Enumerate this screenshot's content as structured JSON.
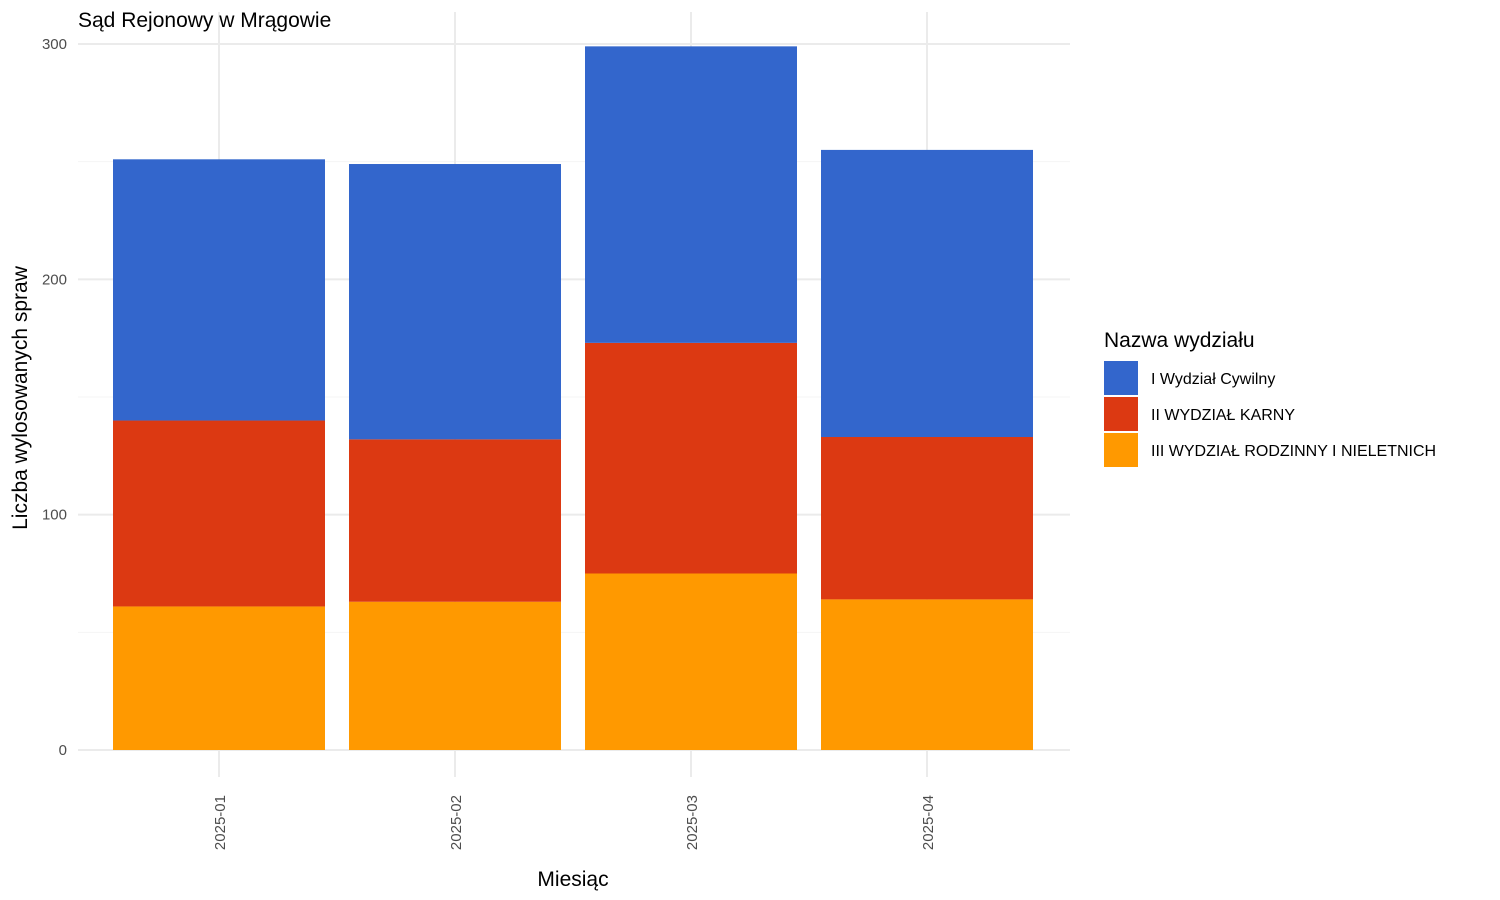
{
  "chart_data": {
    "type": "bar",
    "stacked": true,
    "title": "Sąd Rejonowy w Mrągowie",
    "xlabel": "Miesiąc",
    "ylabel": "Liczba wylosowanych spraw",
    "categories": [
      "2025-01",
      "2025-02",
      "2025-03",
      "2025-04"
    ],
    "ylim": [
      0,
      300
    ],
    "yticks": [
      0,
      100,
      200,
      300
    ],
    "grid": true,
    "legend_title": "Nazwa wydziału",
    "legend_position": "right",
    "series": [
      {
        "name": "III WYDZIAŁ RODZINNY I NIELETNICH",
        "color": "#FF9900",
        "values": [
          61,
          63,
          75,
          64
        ]
      },
      {
        "name": "II WYDZIAŁ KARNY",
        "color": "#DC3912",
        "values": [
          79,
          69,
          98,
          69
        ]
      },
      {
        "name": "I Wydział Cywilny",
        "color": "#3366CC",
        "values": [
          111,
          117,
          126,
          122
        ]
      }
    ],
    "legend_order": [
      "I Wydział Cywilny",
      "II WYDZIAŁ KARNY",
      "III WYDZIAŁ RODZINNY I NIELETNICH"
    ]
  }
}
